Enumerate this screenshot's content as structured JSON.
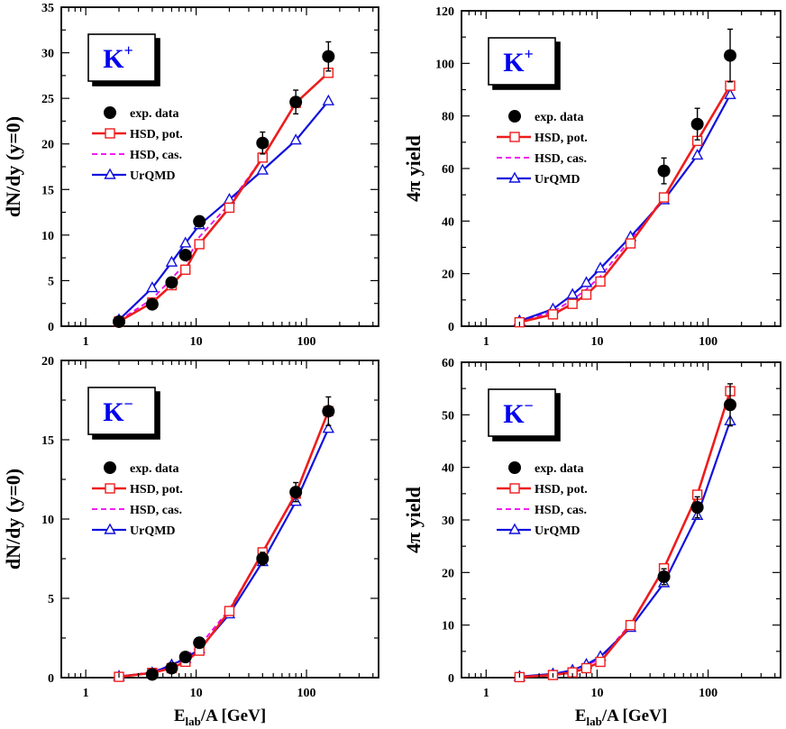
{
  "colors": {
    "pot": "#ee1c1c",
    "cas": "#ee00ee",
    "urqmd": "#1010dd",
    "data": "#000000",
    "label": "#0000ee"
  },
  "shared": {
    "xlabel_main": "E",
    "xlabel_sub": "lab",
    "xlabel_rest": "/A [GeV]"
  },
  "legend": {
    "data": "exp. data",
    "pot": "HSD, pot.",
    "cas": "HSD, cas.",
    "urqmd": "UrQMD"
  },
  "chart_data": [
    {
      "type": "line",
      "particle": "K",
      "charge": "+",
      "ylabel": "dN/dy (y=0)",
      "xscale": "log",
      "xlim": [
        0.6,
        450
      ],
      "ylim": [
        0,
        35
      ],
      "xticks": [
        1,
        10,
        100
      ],
      "xtick_labels": [
        "1",
        "10",
        "100"
      ],
      "yticks": [
        0,
        5,
        10,
        15,
        20,
        25,
        30,
        35
      ],
      "ytick_labels": [
        "0",
        "5",
        "10",
        "15",
        "20",
        "25",
        "30",
        "35"
      ],
      "series": [
        {
          "name": "exp. data",
          "key": "data",
          "x": [
            2,
            4,
            6,
            8,
            10.7,
            40,
            80,
            158
          ],
          "y": [
            0.5,
            2.4,
            4.8,
            7.8,
            11.5,
            20.1,
            24.6,
            29.6
          ],
          "err": [
            0.1,
            0.3,
            0.4,
            0.5,
            0.5,
            1.2,
            1.3,
            1.6
          ]
        },
        {
          "name": "HSD, pot.",
          "key": "pot",
          "x": [
            2,
            4,
            6,
            8,
            10.7,
            20,
            40,
            80,
            158
          ],
          "y": [
            0.5,
            2.6,
            4.5,
            6.2,
            9.0,
            13.0,
            18.5,
            24.5,
            27.8
          ]
        },
        {
          "name": "HSD, cas.",
          "key": "cas",
          "x": [
            2,
            4,
            6,
            8,
            10.7,
            20,
            40,
            80,
            158
          ],
          "y": [
            0.6,
            3.0,
            5.2,
            6.9,
            9.8,
            13.4,
            18.5,
            24.5,
            27.8
          ]
        },
        {
          "name": "UrQMD",
          "key": "urqmd",
          "x": [
            2,
            4,
            6,
            8,
            10.7,
            20,
            40,
            80,
            158
          ],
          "y": [
            0.7,
            4.2,
            7.0,
            9.1,
            11.1,
            13.9,
            17.1,
            20.4,
            24.7
          ]
        }
      ]
    },
    {
      "type": "line",
      "particle": "K",
      "charge": "+",
      "ylabel": "4π yield",
      "xscale": "log",
      "xlim": [
        0.6,
        450
      ],
      "ylim": [
        0,
        120
      ],
      "xticks": [
        1,
        10,
        100
      ],
      "xtick_labels": [
        "1",
        "10",
        "100"
      ],
      "yticks": [
        0,
        20,
        40,
        60,
        80,
        100,
        120
      ],
      "ytick_labels": [
        "0",
        "20",
        "40",
        "60",
        "80",
        "100",
        "120"
      ],
      "series": [
        {
          "name": "exp. data",
          "key": "data",
          "x": [
            40,
            80,
            158
          ],
          "y": [
            59.1,
            76.9,
            103.0
          ],
          "err": [
            4.9,
            6.0,
            10.0
          ]
        },
        {
          "name": "HSD, pot.",
          "key": "pot",
          "x": [
            2,
            4,
            6,
            8,
            10.7,
            20,
            40,
            80,
            158
          ],
          "y": [
            1.5,
            4.5,
            8.5,
            12.0,
            17.0,
            31.5,
            49.0,
            70.5,
            91.5
          ]
        },
        {
          "name": "HSD, cas.",
          "key": "cas",
          "x": [
            2,
            4,
            6,
            8,
            10.7,
            20,
            40,
            80,
            158
          ],
          "y": [
            1.8,
            5.5,
            10.0,
            14.0,
            19.0,
            33.0,
            49.0,
            70.5,
            91.5
          ]
        },
        {
          "name": "UrQMD",
          "key": "urqmd",
          "x": [
            2,
            4,
            6,
            8,
            10.7,
            20,
            40,
            80,
            158
          ],
          "y": [
            2.0,
            6.5,
            12.0,
            16.5,
            22.0,
            34.0,
            48.0,
            65.0,
            88.0
          ]
        }
      ]
    },
    {
      "type": "line",
      "particle": "K",
      "charge": "−",
      "ylabel": "dN/dy (y=0)",
      "xscale": "log",
      "xlim": [
        0.6,
        450
      ],
      "ylim": [
        0,
        20
      ],
      "xticks": [
        1,
        10,
        100
      ],
      "xtick_labels": [
        "1",
        "10",
        "100"
      ],
      "yticks": [
        0,
        5,
        10,
        15,
        20
      ],
      "ytick_labels": [
        "0",
        "5",
        "10",
        "15",
        "20"
      ],
      "series": [
        {
          "name": "exp. data",
          "key": "data",
          "x": [
            4,
            6,
            8,
            10.7,
            40,
            80,
            158
          ],
          "y": [
            0.2,
            0.6,
            1.3,
            2.2,
            7.5,
            11.7,
            16.8
          ],
          "err": [
            0.05,
            0.1,
            0.1,
            0.2,
            0.4,
            0.6,
            0.9
          ]
        },
        {
          "name": "HSD, pot.",
          "key": "pot",
          "x": [
            2,
            4,
            6,
            8,
            10.7,
            20,
            40,
            80,
            158
          ],
          "y": [
            0.05,
            0.3,
            0.6,
            1.0,
            1.7,
            4.2,
            7.9,
            11.6,
            16.8
          ]
        },
        {
          "name": "HSD, cas.",
          "key": "cas",
          "x": [
            2,
            4,
            6,
            8,
            10.7,
            20,
            40,
            80,
            158
          ],
          "y": [
            0.07,
            0.35,
            0.8,
            1.3,
            2.0,
            4.3,
            7.9,
            11.6,
            16.8
          ]
        },
        {
          "name": "UrQMD",
          "key": "urqmd",
          "x": [
            2,
            4,
            6,
            8,
            10.7,
            20,
            40,
            80,
            158
          ],
          "y": [
            0.08,
            0.3,
            0.8,
            1.2,
            1.8,
            4.0,
            7.3,
            11.1,
            15.7
          ]
        }
      ]
    },
    {
      "type": "line",
      "particle": "K",
      "charge": "−",
      "ylabel": "4π yield",
      "xscale": "log",
      "xlim": [
        0.6,
        450
      ],
      "ylim": [
        0,
        60
      ],
      "xticks": [
        1,
        10,
        100
      ],
      "xtick_labels": [
        "1",
        "10",
        "100"
      ],
      "yticks": [
        0,
        10,
        20,
        30,
        40,
        50,
        60
      ],
      "ytick_labels": [
        "0",
        "10",
        "20",
        "30",
        "40",
        "50",
        "60"
      ],
      "series": [
        {
          "name": "exp. data",
          "key": "data",
          "x": [
            40,
            80,
            158
          ],
          "y": [
            19.2,
            32.4,
            51.9
          ],
          "err": [
            1.5,
            2.0,
            4.0
          ]
        },
        {
          "name": "HSD, pot.",
          "key": "pot",
          "x": [
            2,
            4,
            6,
            8,
            10.7,
            20,
            40,
            80,
            158
          ],
          "y": [
            0.1,
            0.5,
            1.0,
            1.8,
            3.0,
            10.0,
            20.8,
            34.8,
            54.5
          ]
        },
        {
          "name": "HSD, cas.",
          "key": "cas",
          "x": [
            2,
            4,
            6,
            8,
            10.7,
            20,
            40,
            80,
            158
          ],
          "y": [
            0.15,
            0.7,
            1.4,
            2.3,
            3.6,
            10.2,
            20.8,
            34.8,
            54.5
          ]
        },
        {
          "name": "UrQMD",
          "key": "urqmd",
          "x": [
            2,
            4,
            6,
            8,
            10.7,
            20,
            40,
            80,
            158
          ],
          "y": [
            0.2,
            0.7,
            1.4,
            2.5,
            4.0,
            9.5,
            18.0,
            30.8,
            48.8
          ]
        }
      ]
    }
  ]
}
